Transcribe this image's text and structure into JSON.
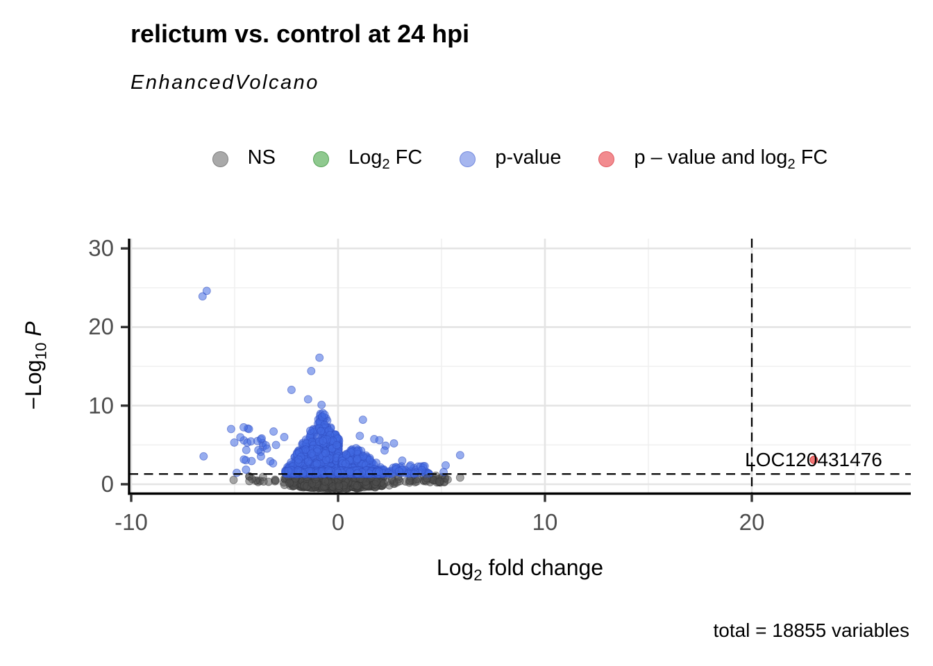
{
  "title": "relictum vs. control at 24 hpi",
  "subtitle": "EnhancedVolcano",
  "caption": "total = 18855 variables",
  "legend": {
    "items": [
      {
        "pre": "NS",
        "sub": "",
        "post": "",
        "key_style": "background:#a9a9a9;border:1.5px solid #7f7f7f"
      },
      {
        "pre": "Log",
        "sub": "2",
        "post": " FC",
        "key_style": "background:#8fc98f;border:1.5px solid #57a257"
      },
      {
        "pre": "p-value",
        "sub": "",
        "post": "",
        "key_style": "background:#a6b6ef;border:1.5px solid #7389dd"
      },
      {
        "pre": "p – value and log",
        "sub": "2",
        "post": " FC",
        "key_style": "background:#f28b8f;border:1.5px solid #e05a61"
      }
    ]
  },
  "axes": {
    "x": {
      "label_pre": "Log",
      "label_sub": "2",
      "label_post": " fold change",
      "ticks": [
        -10,
        0,
        10,
        20
      ],
      "tick_labels": [
        "-10",
        "0",
        "10",
        "20"
      ],
      "minor_ticks": [
        -5,
        5,
        15,
        25
      ],
      "range": [
        -10.1,
        27.7
      ]
    },
    "y": {
      "label_pre": "−Log",
      "label_sub": "10",
      "label_post_italic": "P",
      "ticks": [
        30,
        20,
        10,
        0
      ],
      "tick_labels": [
        "30",
        "20",
        "10",
        "0"
      ],
      "minor_ticks": [
        5,
        15,
        25
      ],
      "range": [
        -1.2,
        31.2
      ]
    }
  },
  "chart_data": {
    "type": "scatter",
    "variant": "volcano",
    "title": "relictum vs. control at 24 hpi",
    "subtitle": "EnhancedVolcano",
    "caption": "total = 18855 variables",
    "xlabel": "Log2 fold change",
    "ylabel": "-Log10 P",
    "xlim": [
      -10.1,
      27.7
    ],
    "ylim": [
      -1.2,
      31.2
    ],
    "grid": true,
    "legend_position": "top",
    "total_variables": 18855,
    "thresholds": {
      "hline_neg_log10_p": 1.3,
      "vline_log2fc": 20,
      "line_style": "dashed"
    },
    "colors": {
      "ns_fill": "rgba(77,77,77,0.5)",
      "ns_stroke": "rgba(51,51,51,0.5)",
      "p_fill": "rgba(65,105,225,0.55)",
      "p_stroke": "rgba(47,77,191,0.55)",
      "both_fill": "rgba(238,34,34,0.62)",
      "both_stroke": "rgba(190,10,10,0.7)"
    },
    "labeled_points": [
      {
        "label": "LOC120431476",
        "x": 23.0,
        "y": 3.1,
        "category": "p_value_and_log2fc"
      }
    ],
    "outlier_points": {
      "p_value": [
        [
          -6.55,
          23.9
        ],
        [
          -6.35,
          24.6
        ],
        [
          -6.5,
          3.55
        ],
        [
          -4.9,
          1.45
        ],
        [
          -4.45,
          1.85
        ],
        [
          -0.9,
          16.1
        ],
        [
          -1.3,
          14.4
        ],
        [
          -2.25,
          12.0
        ],
        [
          -1.45,
          10.8
        ],
        [
          -0.8,
          10.1
        ],
        [
          -0.65,
          8.85
        ],
        [
          1.2,
          8.2
        ],
        [
          1.05,
          6.15
        ],
        [
          1.75,
          5.75
        ],
        [
          2.0,
          5.6
        ],
        [
          2.7,
          5.2
        ],
        [
          2.3,
          4.9
        ],
        [
          2.25,
          4.3
        ],
        [
          3.1,
          3.0
        ],
        [
          3.5,
          2.4
        ],
        [
          4.05,
          1.8
        ],
        [
          2.95,
          1.65
        ],
        [
          5.9,
          3.7
        ],
        [
          5.2,
          2.4
        ],
        [
          5.1,
          1.55
        ],
        [
          -3.0,
          5.0
        ],
        [
          -2.6,
          6.0
        ]
      ],
      "ns": [
        [
          -5.05,
          0.55
        ],
        [
          5.9,
          0.85
        ],
        [
          4.6,
          0.5
        ],
        [
          4.9,
          0.35
        ],
        [
          4.3,
          0.75
        ],
        [
          -3.6,
          0.35
        ],
        [
          3.8,
          0.35
        ],
        [
          5.3,
          0.6
        ]
      ]
    },
    "dense_clusters": [
      {
        "category": "ns",
        "shape": "lens",
        "count": 1150,
        "x_center": -0.05,
        "x_half_range": 3.4,
        "y_center": 0.55,
        "y_bottom_amp": 1.1,
        "y_top_amp": 0.72
      },
      {
        "category": "ns",
        "shape": "band",
        "count": 40,
        "x_min": 2.6,
        "x_max": 5.2,
        "y_min": 0.2,
        "y_max": 1.1
      },
      {
        "category": "ns",
        "shape": "band",
        "count": 12,
        "x_min": -4.3,
        "x_max": -3.0,
        "y_min": 0.2,
        "y_max": 1.0
      },
      {
        "category": "p_value",
        "shape": "peak",
        "count": 680,
        "x_center": -0.78,
        "x_min": -2.65,
        "x_max": 0.05,
        "base_y": 1.31,
        "peak_y": 9.3,
        "half_width": 1.9
      },
      {
        "category": "p_value",
        "shape": "peak",
        "count": 320,
        "x_center": 0.85,
        "x_min": 0.15,
        "x_max": 2.6,
        "base_y": 1.31,
        "peak_y": 4.8,
        "half_width": 1.7
      },
      {
        "category": "p_value",
        "shape": "band",
        "count": 200,
        "x_min": -2.6,
        "x_max": 2.6,
        "y_min": 1.31,
        "y_max": 1.8
      },
      {
        "category": "p_value",
        "shape": "band",
        "count": 40,
        "x_min": 2.6,
        "x_max": 4.4,
        "y_min": 1.32,
        "y_max": 2.3
      },
      {
        "category": "p_value",
        "shape": "band",
        "count": 16,
        "x_min": -5.2,
        "x_max": -2.7,
        "y_min": 4.7,
        "y_max": 7.3
      },
      {
        "category": "p_value",
        "shape": "band",
        "count": 10,
        "x_min": -4.7,
        "x_max": -2.9,
        "y_min": 2.2,
        "y_max": 4.6
      }
    ]
  }
}
